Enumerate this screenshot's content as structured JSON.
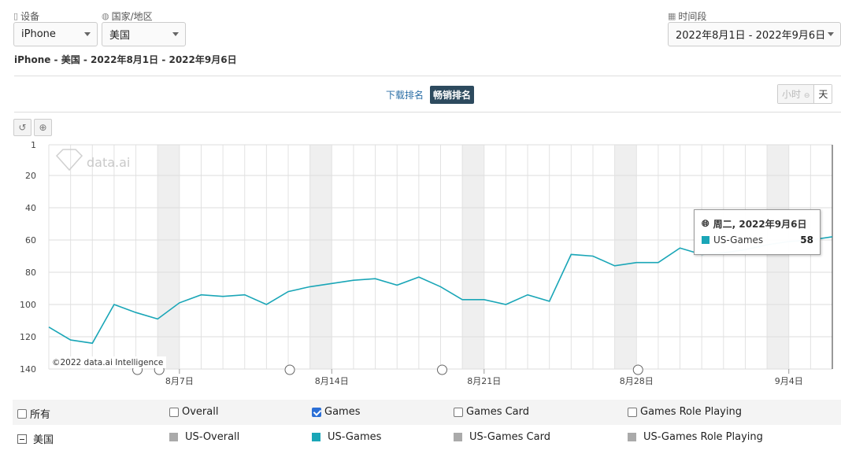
{
  "filters": {
    "device_label": "设备",
    "device_value": "iPhone",
    "country_label": "国家/地区",
    "country_value": "美国",
    "period_label": "时间段",
    "period_value": "2022年8月1日 - 2022年9月6日"
  },
  "subtitle": "iPhone - 美国 - 2022年8月1日 - 2022年9月6日",
  "tabs": {
    "download": "下载排名",
    "grossing": "畅销排名"
  },
  "unit": {
    "hour": "小时",
    "day": "天"
  },
  "tooltip": {
    "date": "周二, 2022年9月6日",
    "series": "US-Games",
    "value": "58"
  },
  "legend": {
    "row1": [
      "所有",
      "Overall",
      "Games",
      "Games Card",
      "Games Role Playing"
    ],
    "row2_country": "美国",
    "row2": [
      "US-Overall",
      "US-Games",
      "US-Games Card",
      "US-Games Role Playing"
    ]
  },
  "colors": {
    "series": "#1aa6b7",
    "inactive": "#aaaaaa",
    "tab_active": "#2d4a5e"
  },
  "chart_data": {
    "type": "line",
    "y_reversed": true,
    "ylim": [
      1,
      140
    ],
    "y_ticks": [
      1,
      20,
      40,
      60,
      80,
      100,
      120,
      140
    ],
    "x_ticks": [
      "8月7日",
      "8月14日",
      "8月21日",
      "8月28日",
      "9月4日"
    ],
    "x": [
      "2022-08-01",
      "2022-08-02",
      "2022-08-03",
      "2022-08-04",
      "2022-08-05",
      "2022-08-06",
      "2022-08-07",
      "2022-08-08",
      "2022-08-09",
      "2022-08-10",
      "2022-08-11",
      "2022-08-12",
      "2022-08-13",
      "2022-08-14",
      "2022-08-15",
      "2022-08-16",
      "2022-08-17",
      "2022-08-18",
      "2022-08-19",
      "2022-08-20",
      "2022-08-21",
      "2022-08-22",
      "2022-08-23",
      "2022-08-24",
      "2022-08-25",
      "2022-08-26",
      "2022-08-27",
      "2022-08-28",
      "2022-08-29",
      "2022-08-30",
      "2022-08-31",
      "2022-09-01",
      "2022-09-02",
      "2022-09-03",
      "2022-09-04",
      "2022-09-05",
      "2022-09-06"
    ],
    "weekend_bands": [
      [
        "2022-08-06",
        "2022-08-07"
      ],
      [
        "2022-08-13",
        "2022-08-14"
      ],
      [
        "2022-08-20",
        "2022-08-21"
      ],
      [
        "2022-08-27",
        "2022-08-28"
      ],
      [
        "2022-09-03",
        "2022-09-04"
      ]
    ],
    "series": [
      {
        "name": "US-Games",
        "values": [
          114,
          122,
          124,
          100,
          105,
          109,
          99,
          94,
          95,
          94,
          100,
          92,
          89,
          87,
          85,
          84,
          88,
          83,
          89,
          97,
          97,
          100,
          94,
          98,
          69,
          70,
          76,
          74,
          74,
          65,
          69,
          68,
          66,
          63,
          61,
          60,
          58
        ]
      }
    ],
    "watermark": "data.ai",
    "copyright": "©2022 data.ai Intelligence"
  }
}
